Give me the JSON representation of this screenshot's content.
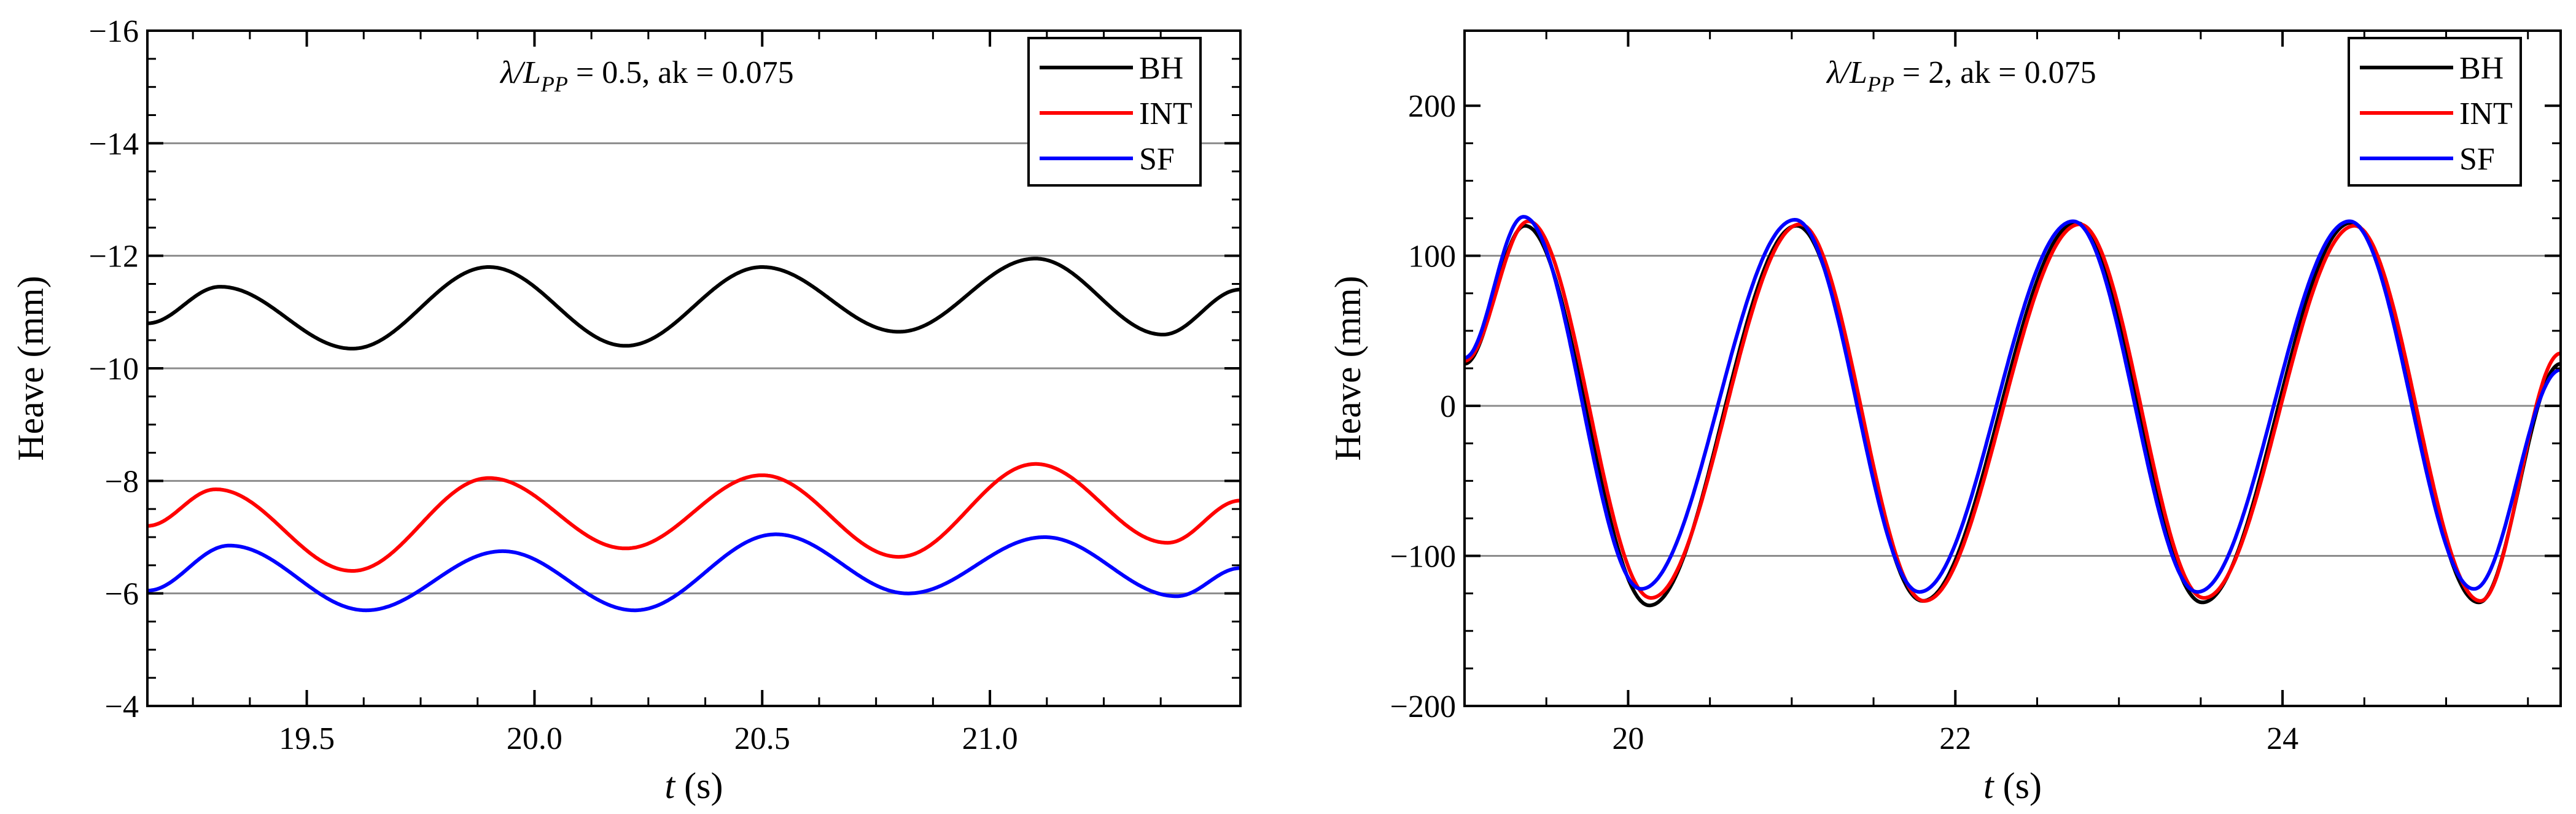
{
  "chart_data": [
    {
      "type": "line",
      "panel": "left",
      "annotation": {
        "prefix": "λ/L",
        "sub": "PP",
        "suffix": " = 0.5, ak = 0.075"
      },
      "xlabel": {
        "italic": "t",
        "rest": " (s)"
      },
      "ylabel": "Heave (mm)",
      "xlim": [
        19.15,
        21.55
      ],
      "ylim": [
        -16,
        -4
      ],
      "y_inverted": true,
      "xticks": [
        19.5,
        20.0,
        20.5,
        21.0
      ],
      "xtick_labels": [
        "19.5",
        "20.0",
        "20.5",
        "21.0"
      ],
      "yticks": [
        -16,
        -14,
        -12,
        -10,
        -8,
        -6,
        -4
      ],
      "ytick_labels": [
        "−16",
        "−14",
        "−12",
        "−10",
        "−8",
        "−6",
        "−4"
      ],
      "grid": "horizontal",
      "legend_position": "top-right",
      "series": [
        {
          "name": "BH",
          "color": "#000000",
          "x": [
            19.15,
            19.31,
            19.6,
            19.9,
            20.2,
            20.5,
            20.8,
            21.1,
            21.38,
            21.55
          ],
          "y": [
            -10.8,
            -11.45,
            -10.35,
            -11.8,
            -10.4,
            -11.8,
            -10.65,
            -11.95,
            -10.6,
            -11.4
          ]
        },
        {
          "name": "INT",
          "color": "#ff0000",
          "x": [
            19.15,
            19.3,
            19.6,
            19.9,
            20.2,
            20.5,
            20.8,
            21.1,
            21.39,
            21.55
          ],
          "y": [
            -7.2,
            -7.85,
            -6.4,
            -8.05,
            -6.8,
            -8.1,
            -6.65,
            -8.3,
            -6.9,
            -7.65
          ]
        },
        {
          "name": "SF",
          "color": "#0000ff",
          "x": [
            19.15,
            19.33,
            19.63,
            19.93,
            20.22,
            20.53,
            20.82,
            21.12,
            21.41,
            21.55
          ],
          "y": [
            -6.05,
            -6.85,
            -5.7,
            -6.75,
            -5.7,
            -7.05,
            -6.0,
            -7.0,
            -5.95,
            -6.45
          ]
        }
      ]
    },
    {
      "type": "line",
      "panel": "right",
      "annotation": {
        "prefix": "λ/L",
        "sub": "PP",
        "suffix": " = 2, ak = 0.075"
      },
      "xlabel": {
        "italic": "t",
        "rest": " (s)"
      },
      "ylabel": "Heave (mm)",
      "xlim": [
        19.0,
        25.7
      ],
      "ylim": [
        -200,
        250
      ],
      "y_inverted": false,
      "xticks": [
        20,
        22,
        24
      ],
      "xtick_labels": [
        "20",
        "22",
        "24"
      ],
      "yticks": [
        -200,
        -100,
        0,
        100,
        200
      ],
      "ytick_labels": [
        "−200",
        "−100",
        "0",
        "100",
        "200"
      ],
      "grid": "horizontal",
      "legend_position": "top-right",
      "series": [
        {
          "name": "BH",
          "color": "#000000",
          "x": [
            19.0,
            19.37,
            20.13,
            21.03,
            21.8,
            22.74,
            23.51,
            24.42,
            25.2,
            25.7
          ],
          "y": [
            28,
            120,
            -133,
            120,
            -130,
            122,
            -131,
            122,
            -131,
            28
          ]
        },
        {
          "name": "INT",
          "color": "#ff0000",
          "x": [
            19.0,
            19.39,
            20.14,
            21.05,
            21.81,
            22.76,
            23.52,
            24.44,
            25.21,
            25.7
          ],
          "y": [
            30,
            123,
            -128,
            121,
            -130,
            121,
            -128,
            120,
            -130,
            35
          ]
        },
        {
          "name": "SF",
          "color": "#0000ff",
          "x": [
            19.0,
            19.36,
            20.08,
            21.02,
            21.78,
            22.72,
            23.48,
            24.41,
            25.17,
            25.7
          ],
          "y": [
            32,
            126,
            -122,
            124,
            -124,
            123,
            -124,
            123,
            -122,
            24
          ]
        }
      ]
    }
  ]
}
